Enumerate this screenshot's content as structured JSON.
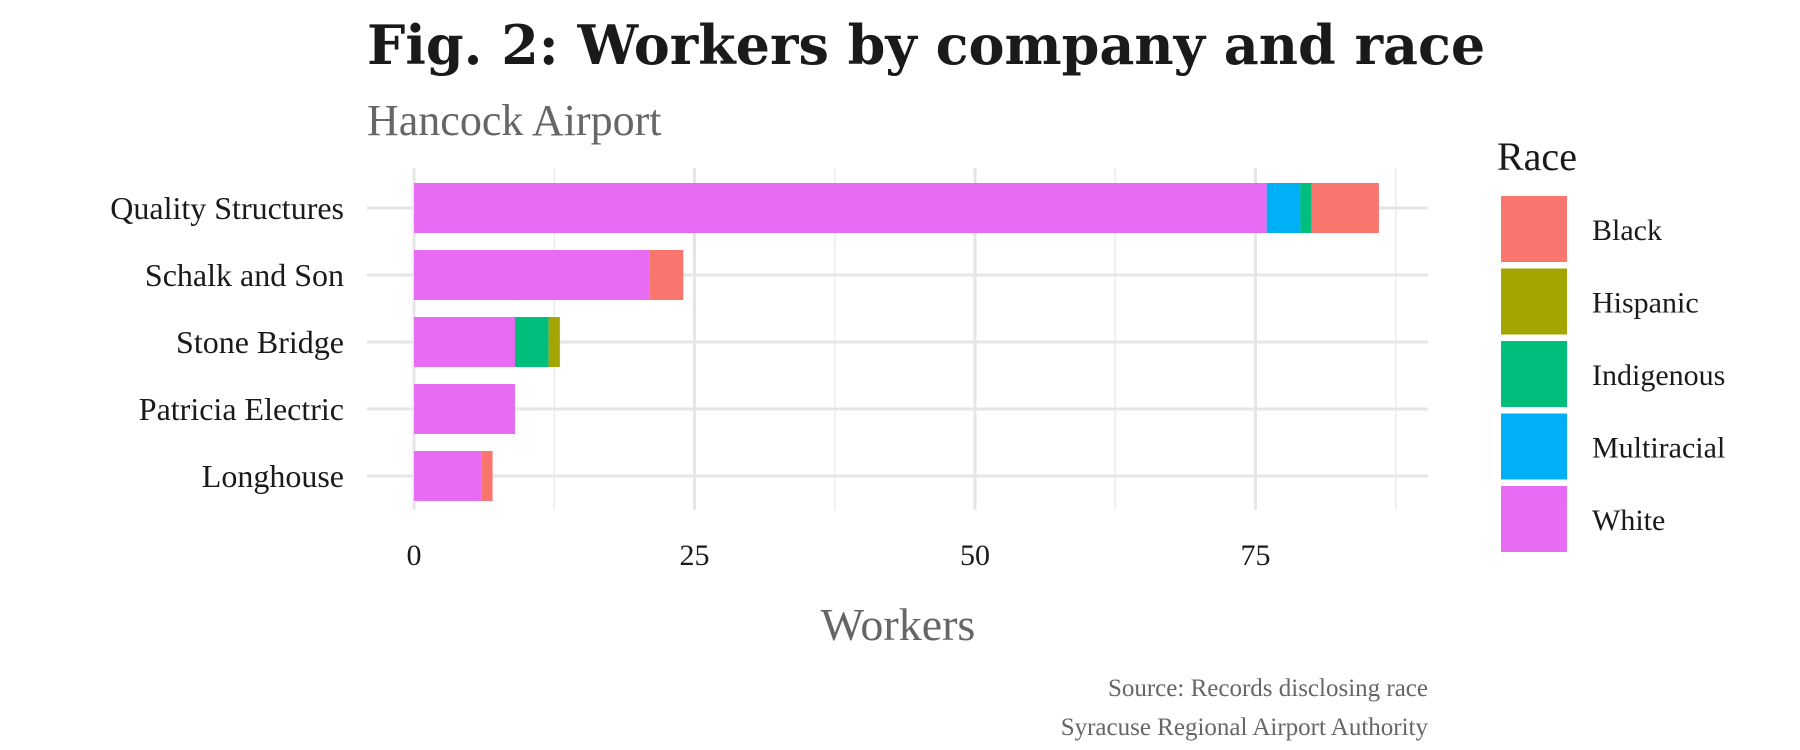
{
  "chart_data": {
    "type": "bar",
    "orientation": "horizontal",
    "stacked": true,
    "title": "Fig. 2: Workers by company and race",
    "subtitle": "Hancock Airport",
    "xlabel": "Workers",
    "ylabel": "",
    "xlim": [
      0,
      90
    ],
    "xticks": [
      0,
      25,
      50,
      75
    ],
    "grid": true,
    "legend_title": "Race",
    "legend_position": "right",
    "categories": [
      "Quality Structures",
      "Schalk and Son",
      "Stone Bridge",
      "Patricia Electric",
      "Longhouse"
    ],
    "series": [
      {
        "name": "White",
        "color": "#E76BF3",
        "values": [
          76,
          21,
          9,
          9,
          6
        ]
      },
      {
        "name": "Multiracial",
        "color": "#00B0F6",
        "values": [
          3,
          0,
          0,
          0,
          0
        ]
      },
      {
        "name": "Indigenous",
        "color": "#00BF7D",
        "values": [
          1,
          0,
          3,
          0,
          0
        ]
      },
      {
        "name": "Hispanic",
        "color": "#A3A500",
        "values": [
          0,
          0,
          1,
          0,
          0
        ]
      },
      {
        "name": "Black",
        "color": "#F8766D",
        "values": [
          6,
          3,
          0,
          0,
          1
        ]
      }
    ],
    "legend_order": [
      "Black",
      "Hispanic",
      "Indigenous",
      "Multiracial",
      "White"
    ],
    "caption_lines": [
      "Source: Records disclosing race",
      "Syracuse Regional Airport Authority"
    ]
  }
}
